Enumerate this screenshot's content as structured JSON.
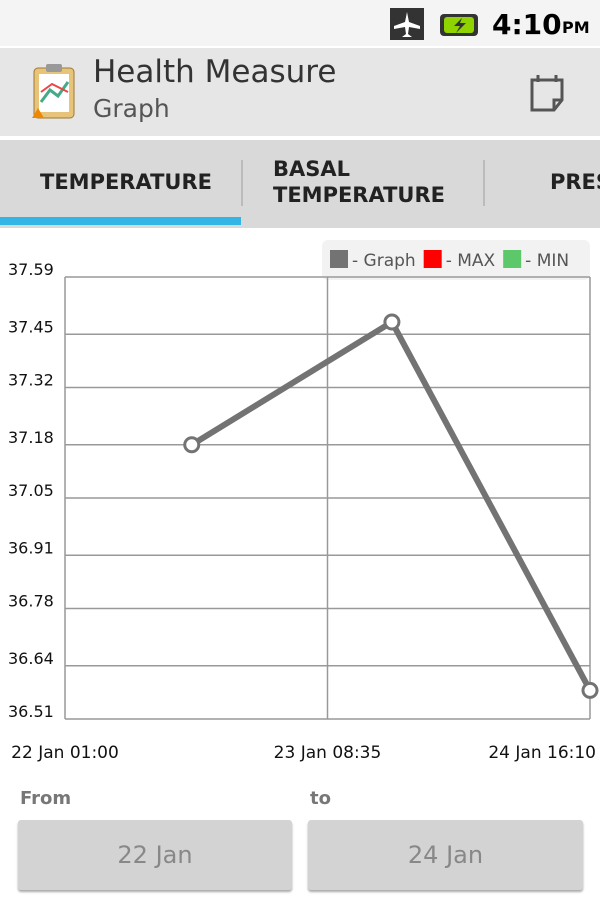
{
  "status": {
    "time": "4:10",
    "ampm": "PM"
  },
  "header": {
    "title": "Health Measure",
    "subtitle": "Graph"
  },
  "tabs": [
    "TEMPERATURE",
    "BASAL TEMPERATURE",
    "PRESSURE"
  ],
  "chart_data": {
    "type": "line",
    "x": [
      "22 Jan 16:15",
      "23 Jan 16:20",
      "24 Jan 16:10"
    ],
    "series": [
      {
        "name": "- Graph",
        "color": "#737373",
        "values": [
          37.18,
          37.48,
          36.58
        ]
      }
    ],
    "legend_extra": [
      {
        "name": "- MAX",
        "color": "#ff0000"
      },
      {
        "name": "- MIN",
        "color": "#5dc86a"
      }
    ],
    "xlim": [
      "22 Jan 01:00",
      "24 Jan 16:10"
    ],
    "xticks": [
      "22 Jan 01:00",
      "23 Jan 08:35",
      "24 Jan 16:10"
    ],
    "ylim": [
      36.51,
      37.59
    ],
    "yticks": [
      36.51,
      36.64,
      36.78,
      36.91,
      37.05,
      37.18,
      37.32,
      37.45,
      37.59
    ],
    "grid": true
  },
  "range": {
    "from_label": "From",
    "to_label": "to",
    "from": "22 Jan",
    "to": "24 Jan"
  }
}
